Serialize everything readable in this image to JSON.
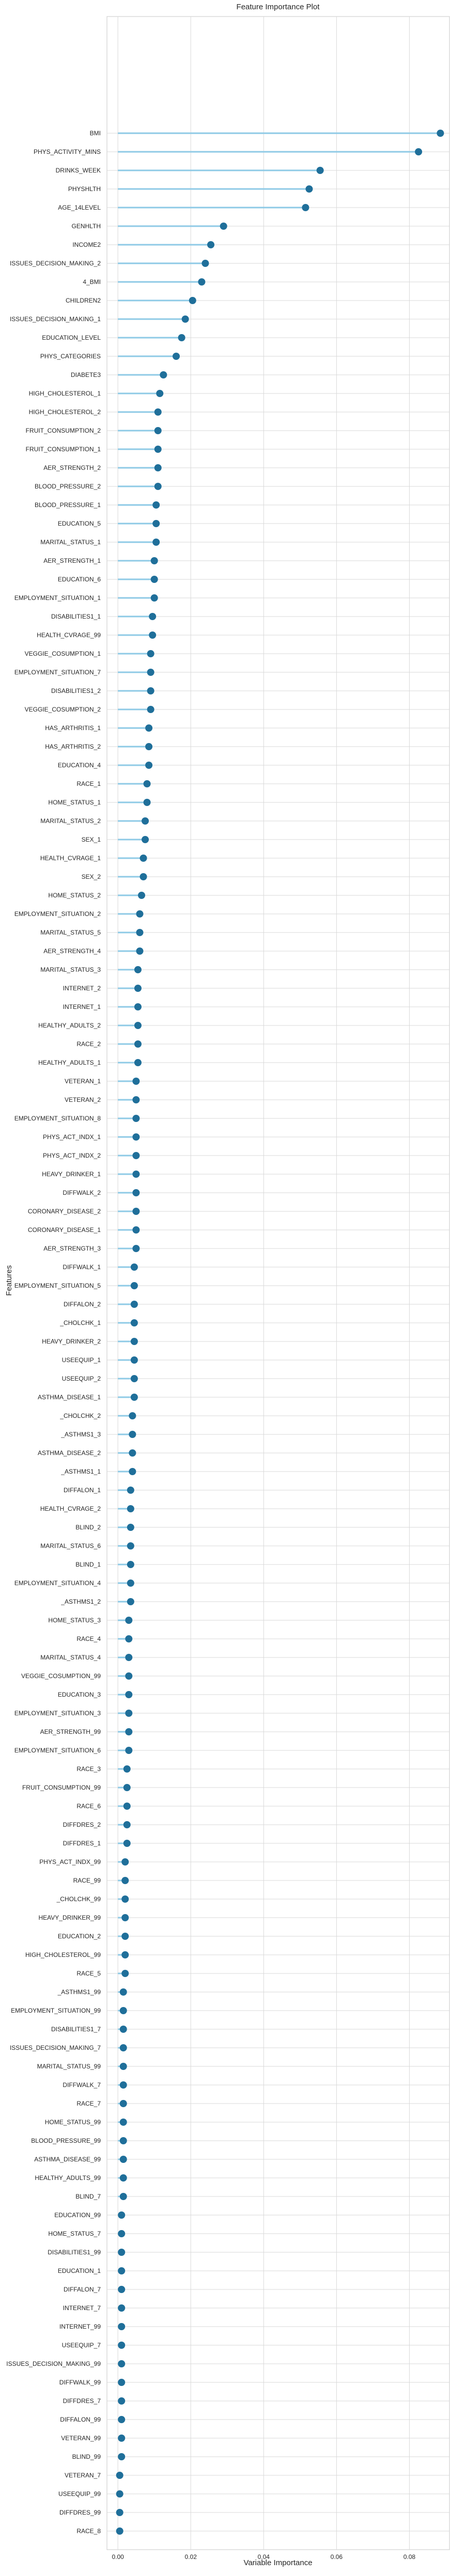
{
  "chart_data": {
    "type": "lollipop",
    "title": "Feature Importance Plot",
    "xlabel": "Variable Importance",
    "ylabel": "Features",
    "xlim": [
      -0.003,
      0.091
    ],
    "xticks": [
      0.0,
      0.02,
      0.04,
      0.06,
      0.08
    ],
    "xtick_labels": [
      "0.00",
      "0.02",
      "0.04",
      "0.06",
      "0.08"
    ],
    "grid": true,
    "colors": {
      "stem": "#8ecae6",
      "marker": "#1f6f9a",
      "grid": "#d9d9d9",
      "axes": "#c8c8c8"
    },
    "features": [
      "BMI",
      "PHYS_ACTIVITY_MINS",
      "DRINKS_WEEK",
      "PHYSHLTH",
      "AGE_14LEVEL",
      "GENHLTH",
      "INCOME2",
      "ISSUES_DECISION_MAKING_2",
      "4_BMI",
      "CHILDREN2",
      "ISSUES_DECISION_MAKING_1",
      "EDUCATION_LEVEL",
      "PHYS_CATEGORIES",
      "DIABETE3",
      "HIGH_CHOLESTEROL_1",
      "HIGH_CHOLESTEROL_2",
      "FRUIT_CONSUMPTION_2",
      "FRUIT_CONSUMPTION_1",
      "AER_STRENGTH_2",
      "BLOOD_PRESSURE_2",
      "BLOOD_PRESSURE_1",
      "EDUCATION_5",
      "MARITAL_STATUS_1",
      "AER_STRENGTH_1",
      "EDUCATION_6",
      "EMPLOYMENT_SITUATION_1",
      "DISABILITIES1_1",
      "HEALTH_CVRAGE_99",
      "VEGGIE_COSUMPTION_1",
      "EMPLOYMENT_SITUATION_7",
      "DISABILITIES1_2",
      "VEGGIE_COSUMPTION_2",
      "HAS_ARTHRITIS_1",
      "HAS_ARTHRITIS_2",
      "EDUCATION_4",
      "RACE_1",
      "HOME_STATUS_1",
      "MARITAL_STATUS_2",
      "SEX_1",
      "HEALTH_CVRAGE_1",
      "SEX_2",
      "HOME_STATUS_2",
      "EMPLOYMENT_SITUATION_2",
      "MARITAL_STATUS_5",
      "AER_STRENGTH_4",
      "MARITAL_STATUS_3",
      "INTERNET_2",
      "INTERNET_1",
      "HEALTHY_ADULTS_2",
      "RACE_2",
      "HEALTHY_ADULTS_1",
      "VETERAN_1",
      "VETERAN_2",
      "EMPLOYMENT_SITUATION_8",
      "PHYS_ACT_INDX_1",
      "PHYS_ACT_INDX_2",
      "HEAVY_DRINKER_1",
      "DIFFWALK_2",
      "CORONARY_DISEASE_2",
      "CORONARY_DISEASE_1",
      "AER_STRENGTH_3",
      "DIFFWALK_1",
      "EMPLOYMENT_SITUATION_5",
      "DIFFALON_2",
      "_CHOLCHK_1",
      "HEAVY_DRINKER_2",
      "USEEQUIP_1",
      "USEEQUIP_2",
      "ASTHMA_DISEASE_1",
      "_CHOLCHK_2",
      "_ASTHMS1_3",
      "ASTHMA_DISEASE_2",
      "_ASTHMS1_1",
      "DIFFALON_1",
      "HEALTH_CVRAGE_2",
      "BLIND_2",
      "MARITAL_STATUS_6",
      "BLIND_1",
      "EMPLOYMENT_SITUATION_4",
      "_ASTHMS1_2",
      "HOME_STATUS_3",
      "RACE_4",
      "MARITAL_STATUS_4",
      "VEGGIE_COSUMPTION_99",
      "EDUCATION_3",
      "EMPLOYMENT_SITUATION_3",
      "AER_STRENGTH_99",
      "EMPLOYMENT_SITUATION_6",
      "RACE_3",
      "FRUIT_CONSUMPTION_99",
      "RACE_6",
      "DIFFDRES_2",
      "DIFFDRES_1",
      "PHYS_ACT_INDX_99",
      "RACE_99",
      "_CHOLCHK_99",
      "HEAVY_DRINKER_99",
      "EDUCATION_2",
      "HIGH_CHOLESTEROL_99",
      "RACE_5",
      "_ASTHMS1_99",
      "EMPLOYMENT_SITUATION_99",
      "DISABILITIES1_7",
      "ISSUES_DECISION_MAKING_7",
      "MARITAL_STATUS_99",
      "DIFFWALK_7",
      "RACE_7",
      "HOME_STATUS_99",
      "BLOOD_PRESSURE_99",
      "ASTHMA_DISEASE_99",
      "HEALTHY_ADULTS_99",
      "BLIND_7",
      "EDUCATION_99",
      "HOME_STATUS_7",
      "DISABILITIES1_99",
      "EDUCATION_1",
      "DIFFALON_7",
      "INTERNET_7",
      "INTERNET_99",
      "USEEQUIP_7",
      "ISSUES_DECISION_MAKING_99",
      "DIFFWALK_99",
      "DIFFDRES_7",
      "DIFFALON_99",
      "VETERAN_99",
      "BLIND_99",
      "VETERAN_7",
      "USEEQUIP_99",
      "DIFFDRES_99",
      "RACE_8"
    ],
    "values": [
      0.0885,
      0.0825,
      0.0555,
      0.0525,
      0.0515,
      0.029,
      0.0255,
      0.024,
      0.023,
      0.0205,
      0.0185,
      0.0175,
      0.016,
      0.0125,
      0.0115,
      0.011,
      0.011,
      0.011,
      0.011,
      0.011,
      0.0105,
      0.0105,
      0.0105,
      0.01,
      0.01,
      0.01,
      0.0095,
      0.0095,
      0.009,
      0.009,
      0.009,
      0.009,
      0.0085,
      0.0085,
      0.0085,
      0.008,
      0.008,
      0.0075,
      0.0075,
      0.007,
      0.007,
      0.0065,
      0.006,
      0.006,
      0.006,
      0.0055,
      0.0055,
      0.0055,
      0.0055,
      0.0055,
      0.0055,
      0.005,
      0.005,
      0.005,
      0.005,
      0.005,
      0.005,
      0.005,
      0.005,
      0.005,
      0.005,
      0.0045,
      0.0045,
      0.0045,
      0.0045,
      0.0045,
      0.0045,
      0.0045,
      0.0045,
      0.004,
      0.004,
      0.004,
      0.004,
      0.0035,
      0.0035,
      0.0035,
      0.0035,
      0.0035,
      0.0035,
      0.0035,
      0.003,
      0.003,
      0.003,
      0.003,
      0.003,
      0.003,
      0.003,
      0.003,
      0.0025,
      0.0025,
      0.0025,
      0.0025,
      0.0025,
      0.002,
      0.002,
      0.002,
      0.002,
      0.002,
      0.002,
      0.002,
      0.0015,
      0.0015,
      0.0015,
      0.0015,
      0.0015,
      0.0015,
      0.0015,
      0.0015,
      0.0015,
      0.0015,
      0.0015,
      0.0015,
      0.001,
      0.001,
      0.001,
      0.001,
      0.001,
      0.001,
      0.001,
      0.001,
      0.001,
      0.001,
      0.001,
      0.001,
      0.001,
      0.001,
      0.0005,
      0.0005,
      0.0005,
      0.0005
    ]
  }
}
